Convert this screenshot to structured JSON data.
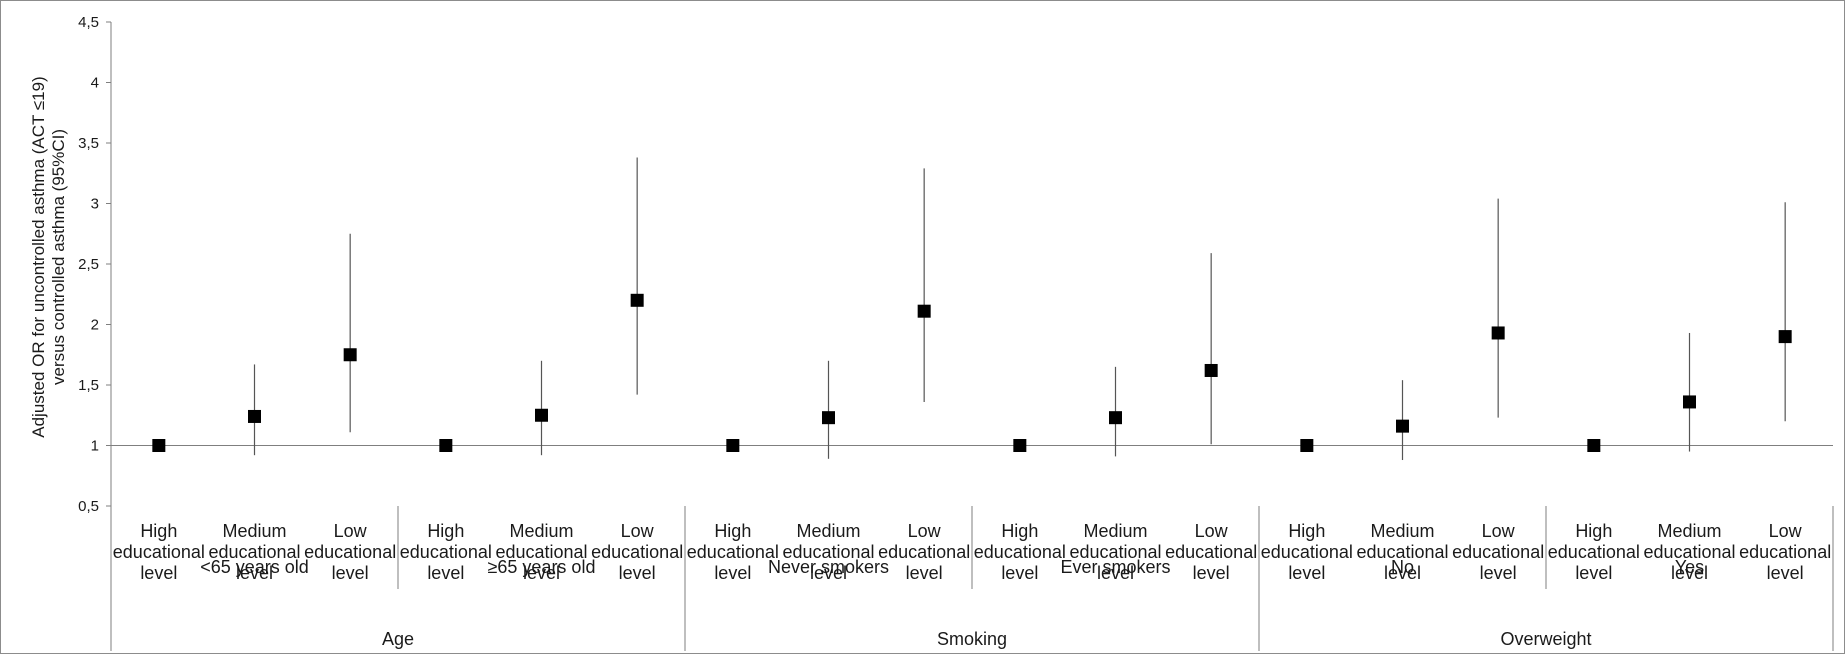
{
  "chart_data": {
    "type": "scatter",
    "ylabel_lines": [
      "Adjusted OR for uncontrolled asthma (ACT ≤19)",
      "versus controlled asthma (95%CI)"
    ],
    "ylim": [
      0.5,
      4.5
    ],
    "yticks": [
      "0,5",
      "1",
      "1,5",
      "2",
      "2,5",
      "3",
      "3,5",
      "4",
      "4,5"
    ],
    "ytick_values": [
      0.5,
      1,
      1.5,
      2,
      2.5,
      3,
      3.5,
      4,
      4.5
    ],
    "reference_line": 1,
    "category_lines": {
      "High": [
        "High",
        "educational",
        "level"
      ],
      "Medium": [
        "Medium",
        "educational",
        "level"
      ],
      "Low": [
        "Low",
        "educational",
        "level"
      ]
    },
    "subgroups": [
      "<65  years old",
      "≥65 years old",
      "Never smokers",
      "Ever smokers",
      "No",
      "Yes"
    ],
    "groups": [
      "Age",
      "Smoking",
      "Overweight"
    ],
    "points": [
      {
        "cat": "High",
        "or": 1.0,
        "low": 1.0,
        "high": 1.0
      },
      {
        "cat": "Medium",
        "or": 1.24,
        "low": 0.92,
        "high": 1.67
      },
      {
        "cat": "Low",
        "or": 1.75,
        "low": 1.11,
        "high": 2.75
      },
      {
        "cat": "High",
        "or": 1.0,
        "low": 1.0,
        "high": 1.0
      },
      {
        "cat": "Medium",
        "or": 1.25,
        "low": 0.92,
        "high": 1.7
      },
      {
        "cat": "Low",
        "or": 2.2,
        "low": 1.42,
        "high": 3.38
      },
      {
        "cat": "High",
        "or": 1.0,
        "low": 1.0,
        "high": 1.0
      },
      {
        "cat": "Medium",
        "or": 1.23,
        "low": 0.89,
        "high": 1.7
      },
      {
        "cat": "Low",
        "or": 2.11,
        "low": 1.36,
        "high": 3.29
      },
      {
        "cat": "High",
        "or": 1.0,
        "low": 1.0,
        "high": 1.0
      },
      {
        "cat": "Medium",
        "or": 1.23,
        "low": 0.91,
        "high": 1.65
      },
      {
        "cat": "Low",
        "or": 1.62,
        "low": 1.01,
        "high": 2.59
      },
      {
        "cat": "High",
        "or": 1.0,
        "low": 1.0,
        "high": 1.0
      },
      {
        "cat": "Medium",
        "or": 1.16,
        "low": 0.88,
        "high": 1.54
      },
      {
        "cat": "Low",
        "or": 1.93,
        "low": 1.23,
        "high": 3.04
      },
      {
        "cat": "High",
        "or": 1.0,
        "low": 1.0,
        "high": 1.0
      },
      {
        "cat": "Medium",
        "or": 1.36,
        "low": 0.95,
        "high": 1.93
      },
      {
        "cat": "Low",
        "or": 1.9,
        "low": 1.2,
        "high": 3.01
      }
    ],
    "grid": false,
    "marker_color": "#000000",
    "line_color": "#7f7f7f"
  }
}
